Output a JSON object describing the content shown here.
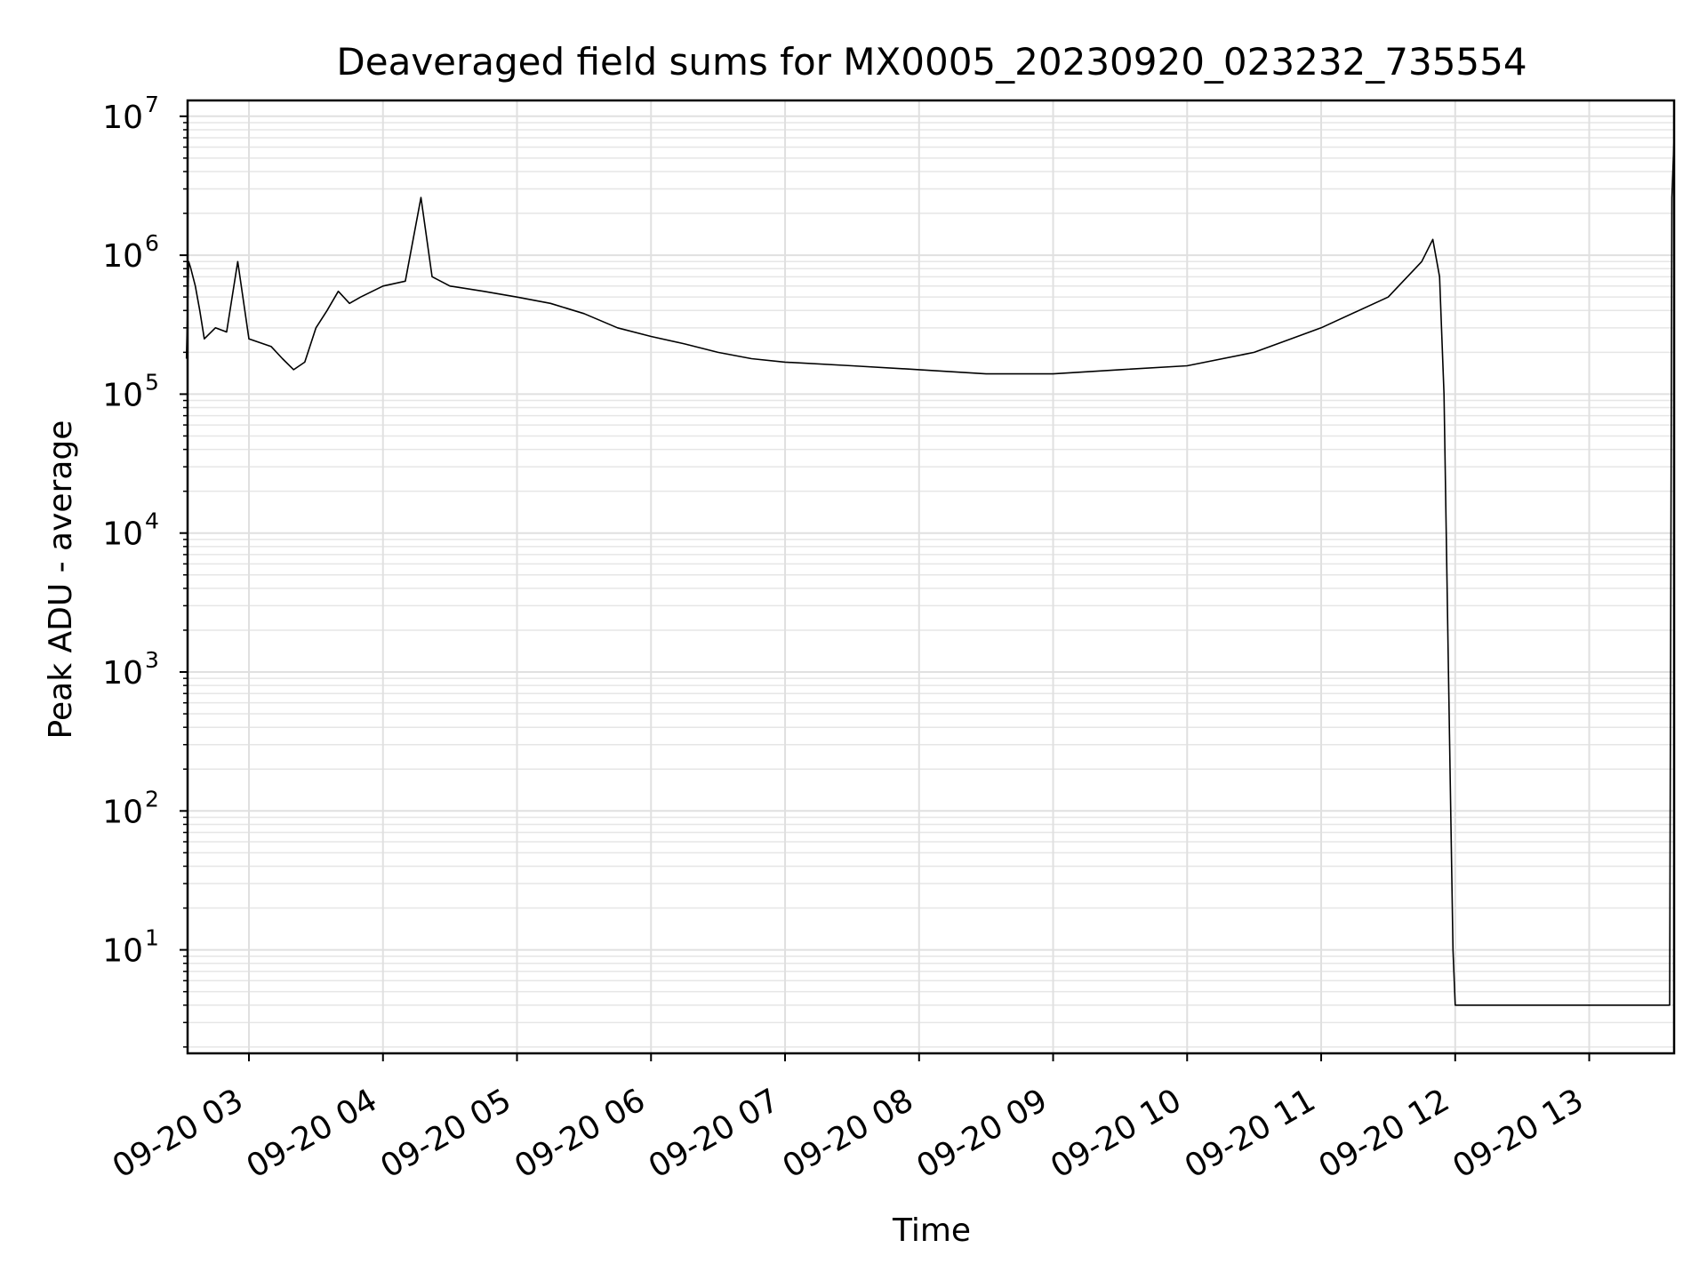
{
  "chart_data": {
    "type": "line",
    "title": "Deaveraged field sums for MX0005_20230920_023232_735554",
    "xlabel": "Time",
    "ylabel": "Peak ADU - average",
    "yscale": "log",
    "ylim": [
      1.8,
      13000000
    ],
    "xlim": [
      "2023-09-20T02:32:32",
      "2023-09-20T13:38:00"
    ],
    "grid": true,
    "line_color": "#000000",
    "x_ticks": [
      {
        "t": "2023-09-20T03:00",
        "label": "09-20 03"
      },
      {
        "t": "2023-09-20T04:00",
        "label": "09-20 04"
      },
      {
        "t": "2023-09-20T05:00",
        "label": "09-20 05"
      },
      {
        "t": "2023-09-20T06:00",
        "label": "09-20 06"
      },
      {
        "t": "2023-09-20T07:00",
        "label": "09-20 07"
      },
      {
        "t": "2023-09-20T08:00",
        "label": "09-20 08"
      },
      {
        "t": "2023-09-20T09:00",
        "label": "09-20 09"
      },
      {
        "t": "2023-09-20T10:00",
        "label": "09-20 10"
      },
      {
        "t": "2023-09-20T11:00",
        "label": "09-20 11"
      },
      {
        "t": "2023-09-20T12:00",
        "label": "09-20 12"
      },
      {
        "t": "2023-09-20T13:00",
        "label": "09-20 13"
      }
    ],
    "y_ticks": [
      {
        "value": 10,
        "base": "10",
        "exp": "1"
      },
      {
        "value": 100,
        "base": "10",
        "exp": "2"
      },
      {
        "value": 1000,
        "base": "10",
        "exp": "3"
      },
      {
        "value": 10000,
        "base": "10",
        "exp": "4"
      },
      {
        "value": 100000,
        "base": "10",
        "exp": "5"
      },
      {
        "value": 1000000,
        "base": "10",
        "exp": "6"
      },
      {
        "value": 10000000,
        "base": "10",
        "exp": "7"
      }
    ],
    "series": [
      {
        "points": [
          [
            "2023-09-20T02:32",
            180000
          ],
          [
            "2023-09-20T02:33",
            900000
          ],
          [
            "2023-09-20T02:34",
            800000
          ],
          [
            "2023-09-20T02:36",
            600000
          ],
          [
            "2023-09-20T02:38",
            400000
          ],
          [
            "2023-09-20T02:40",
            250000
          ],
          [
            "2023-09-20T02:45",
            300000
          ],
          [
            "2023-09-20T02:50",
            280000
          ],
          [
            "2023-09-20T02:55",
            900000
          ],
          [
            "2023-09-20T03:00",
            250000
          ],
          [
            "2023-09-20T03:10",
            220000
          ],
          [
            "2023-09-20T03:15",
            180000
          ],
          [
            "2023-09-20T03:20",
            150000
          ],
          [
            "2023-09-20T03:25",
            170000
          ],
          [
            "2023-09-20T03:30",
            300000
          ],
          [
            "2023-09-20T03:35",
            400000
          ],
          [
            "2023-09-20T03:40",
            550000
          ],
          [
            "2023-09-20T03:45",
            450000
          ],
          [
            "2023-09-20T03:50",
            500000
          ],
          [
            "2023-09-20T04:00",
            600000
          ],
          [
            "2023-09-20T04:10",
            650000
          ],
          [
            "2023-09-20T04:17",
            2600000
          ],
          [
            "2023-09-20T04:22",
            700000
          ],
          [
            "2023-09-20T04:30",
            600000
          ],
          [
            "2023-09-20T04:45",
            550000
          ],
          [
            "2023-09-20T05:00",
            500000
          ],
          [
            "2023-09-20T05:15",
            450000
          ],
          [
            "2023-09-20T05:30",
            380000
          ],
          [
            "2023-09-20T05:45",
            300000
          ],
          [
            "2023-09-20T06:00",
            260000
          ],
          [
            "2023-09-20T06:15",
            230000
          ],
          [
            "2023-09-20T06:30",
            200000
          ],
          [
            "2023-09-20T06:45",
            180000
          ],
          [
            "2023-09-20T07:00",
            170000
          ],
          [
            "2023-09-20T07:30",
            160000
          ],
          [
            "2023-09-20T08:00",
            150000
          ],
          [
            "2023-09-20T08:30",
            140000
          ],
          [
            "2023-09-20T09:00",
            140000
          ],
          [
            "2023-09-20T09:30",
            150000
          ],
          [
            "2023-09-20T10:00",
            160000
          ],
          [
            "2023-09-20T10:30",
            200000
          ],
          [
            "2023-09-20T11:00",
            300000
          ],
          [
            "2023-09-20T11:30",
            500000
          ],
          [
            "2023-09-20T11:45",
            900000
          ],
          [
            "2023-09-20T11:50",
            1300000
          ],
          [
            "2023-09-20T11:53",
            700000
          ],
          [
            "2023-09-20T11:55",
            100000
          ],
          [
            "2023-09-20T11:57",
            1000
          ],
          [
            "2023-09-20T11:59",
            10
          ],
          [
            "2023-09-20T12:00",
            4
          ],
          [
            "2023-09-20T13:36",
            4
          ],
          [
            "2023-09-20T13:37",
            2600000
          ],
          [
            "2023-09-20T13:38",
            7000000
          ]
        ]
      }
    ]
  }
}
